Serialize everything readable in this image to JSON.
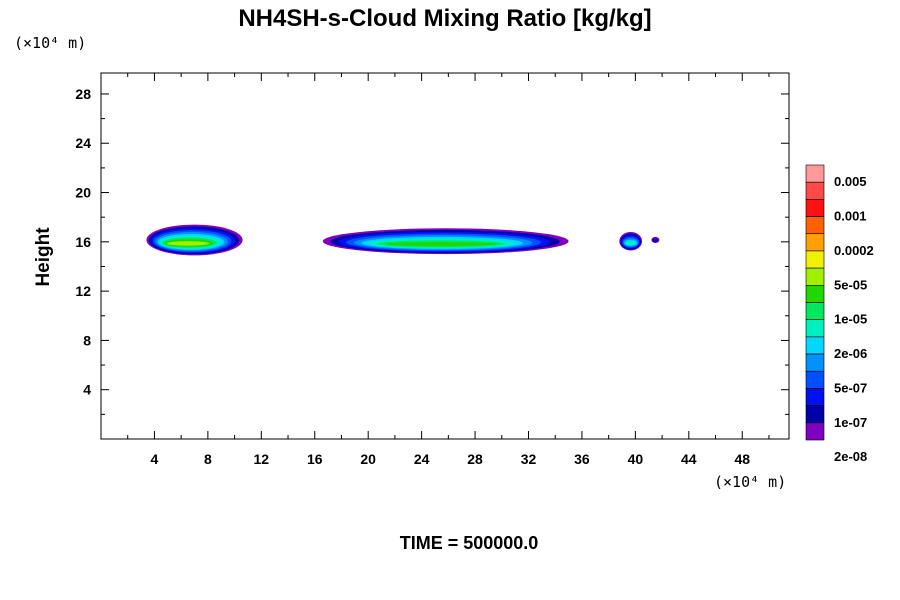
{
  "chart_data": {
    "type": "heatmap",
    "title": "NH4SH-s-Cloud Mixing Ratio [kg/kg]",
    "ylabel": "Height",
    "x_unit_label": "(×10⁴ m)",
    "y_unit_label": "(×10⁴ m)",
    "footer": "TIME = 500000.0",
    "xlim": [
      0,
      51.5
    ],
    "ylim": [
      0,
      29.7
    ],
    "x_ticks": [
      "4",
      "8",
      "12",
      "16",
      "20",
      "24",
      "28",
      "32",
      "36",
      "40",
      "44",
      "48"
    ],
    "y_ticks": [
      "4",
      "8",
      "12",
      "16",
      "20",
      "24",
      "28"
    ],
    "colorbar": {
      "labels": [
        "0.005",
        "0.001",
        "0.0002",
        "5e-05",
        "1e-05",
        "2e-06",
        "5e-07",
        "1e-07",
        "2e-08"
      ],
      "colors": [
        "#ff9a9a",
        "#ff4a4a",
        "#ff1010",
        "#ff6000",
        "#ffa000",
        "#f0f000",
        "#a0f000",
        "#20d800",
        "#00e860",
        "#00f0c0",
        "#00d8ff",
        "#0090ff",
        "#0050ff",
        "#0010f0",
        "#0000a8",
        "#8000c0"
      ]
    },
    "regions": [
      {
        "name": "cloud-left",
        "x": [
          3.4,
          10.6
        ],
        "y": [
          14.9,
          17.4
        ],
        "peak": "5e-05"
      },
      {
        "name": "cloud-center",
        "x": [
          16.6,
          35.0
        ],
        "y": [
          15.0,
          17.1
        ],
        "peak": "1e-05"
      },
      {
        "name": "cloud-right-small",
        "x": [
          38.8,
          40.5
        ],
        "y": [
          15.3,
          16.8
        ],
        "peak": "2e-06"
      },
      {
        "name": "cloud-right-dot",
        "x": [
          41.2,
          41.8
        ],
        "y": [
          15.9,
          16.4
        ],
        "peak": "2e-08"
      }
    ]
  }
}
